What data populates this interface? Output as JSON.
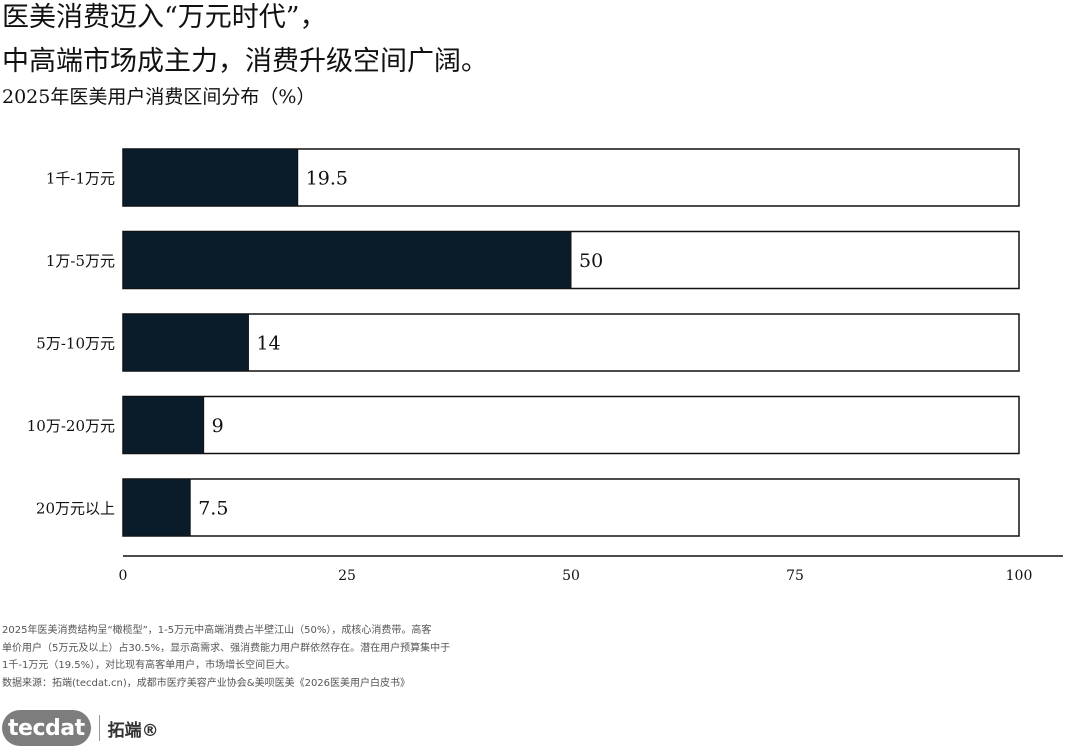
{
  "header": {
    "title_line1": "医美消费迈入“万元时代”，",
    "title_line2": "中高端市场成主力，消费升级空间广阔。",
    "subtitle": "2025年医美用户消费区间分布（%）"
  },
  "chart_data": {
    "type": "bar",
    "orientation": "horizontal",
    "categories": [
      "1千-1万元",
      "1万-5万元",
      "5万-10万元",
      "10万-20万元",
      "20万元以上"
    ],
    "values": [
      19.5,
      50,
      14,
      9,
      7.5
    ],
    "value_labels": [
      "19.5",
      "50",
      "14",
      "9",
      "7.5"
    ],
    "xlim": [
      0,
      100
    ],
    "xticks": [
      0,
      25,
      50,
      75,
      100
    ],
    "grid": false,
    "colors": {
      "bar": "#0a1c2a",
      "track": "#ffffff",
      "outline": "#111111"
    }
  },
  "footnote": {
    "lines": [
      "2025年医美消费结构呈“橄榄型”，1-5万元中高端消费占半壁江山（50%），成核心消费带。高客",
      "单价用户（5万元及以上）占30.5%，显示高需求、强消费能力用户群依然存在。潜在用户预算集中于",
      "1千-1万元（19.5%），对比现有高客单用户，市场增长空间巨大。",
      "数据来源：拓端(tecdat.cn)，成都市医疗美容产业协会&美呗医美《2026医美用户白皮书》"
    ]
  },
  "brand": {
    "logo_text": "tecdat",
    "name_cn": "拓端®"
  }
}
